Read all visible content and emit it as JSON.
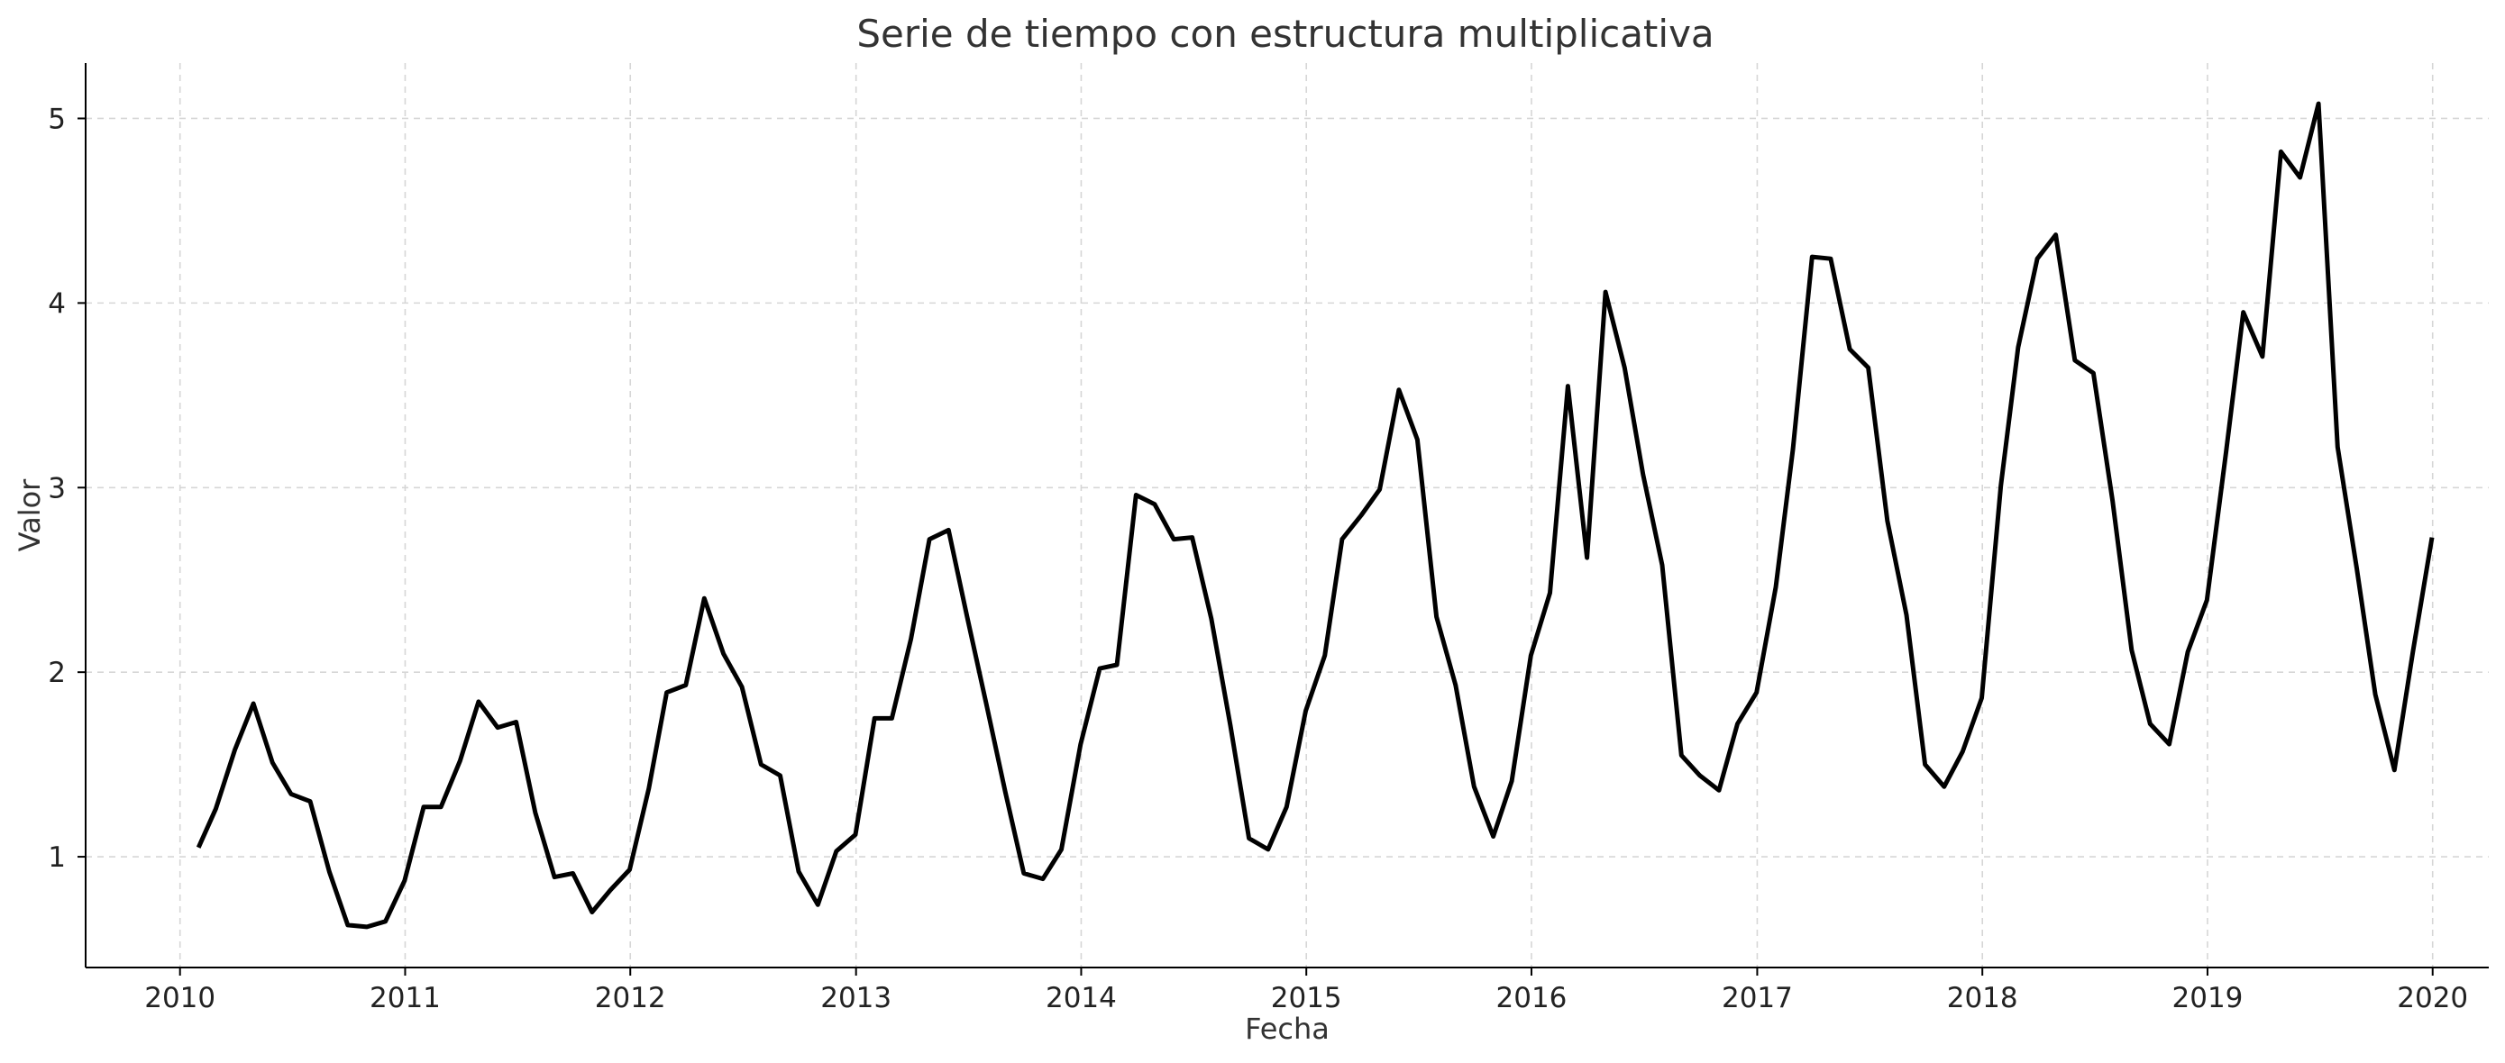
{
  "chart_data": {
    "type": "line",
    "title": "Serie de tiempo con estructura multiplicativa",
    "xlabel": "Fecha",
    "ylabel": "Valor",
    "xlim": [
      "2009-08-01",
      "2020-04-01"
    ],
    "ylim": [
      0.4,
      5.3
    ],
    "grid": true,
    "legend": "none",
    "x_ticks": [
      "2010",
      "2011",
      "2012",
      "2013",
      "2014",
      "2015",
      "2016",
      "2017",
      "2018",
      "2019",
      "2020"
    ],
    "y_ticks": [
      "1",
      "2",
      "3",
      "4",
      "5"
    ],
    "x_tick_values": [
      "2010-01-01",
      "2011-01-01",
      "2012-01-01",
      "2013-01-01",
      "2014-01-01",
      "2015-01-01",
      "2016-01-01",
      "2017-01-01",
      "2018-01-01",
      "2019-01-01",
      "2020-01-01"
    ],
    "y_tick_values": [
      1,
      2,
      3,
      4,
      5
    ],
    "series_color": "#000000",
    "x": [
      "2010-01-31",
      "2010-02-28",
      "2010-03-31",
      "2010-04-30",
      "2010-05-31",
      "2010-06-30",
      "2010-07-31",
      "2010-08-31",
      "2010-09-30",
      "2010-10-31",
      "2010-11-30",
      "2010-12-31",
      "2011-01-31",
      "2011-02-28",
      "2011-03-31",
      "2011-04-30",
      "2011-05-31",
      "2011-06-30",
      "2011-07-31",
      "2011-08-31",
      "2011-09-30",
      "2011-10-31",
      "2011-11-30",
      "2011-12-31",
      "2012-01-31",
      "2012-02-29",
      "2012-03-31",
      "2012-04-30",
      "2012-05-31",
      "2012-06-30",
      "2012-07-31",
      "2012-08-31",
      "2012-09-30",
      "2012-10-31",
      "2012-11-30",
      "2012-12-31",
      "2013-01-31",
      "2013-02-28",
      "2013-03-31",
      "2013-04-30",
      "2013-05-31",
      "2013-06-30",
      "2013-07-31",
      "2013-08-31",
      "2013-09-30",
      "2013-10-31",
      "2013-11-30",
      "2013-12-31",
      "2014-01-31",
      "2014-02-28",
      "2014-03-31",
      "2014-04-30",
      "2014-05-31",
      "2014-06-30",
      "2014-07-31",
      "2014-08-31",
      "2014-09-30",
      "2014-10-31",
      "2014-11-30",
      "2014-12-31",
      "2015-01-31",
      "2015-02-28",
      "2015-03-31",
      "2015-04-30",
      "2015-05-31",
      "2015-06-30",
      "2015-07-31",
      "2015-08-31",
      "2015-09-30",
      "2015-10-31",
      "2015-11-30",
      "2015-12-31",
      "2016-01-31",
      "2016-02-29",
      "2016-03-31",
      "2016-04-30",
      "2016-05-31",
      "2016-06-30",
      "2016-07-31",
      "2016-08-31",
      "2016-09-30",
      "2016-10-31",
      "2016-11-30",
      "2016-12-31",
      "2017-01-31",
      "2017-02-28",
      "2017-03-31",
      "2017-04-30",
      "2017-05-31",
      "2017-06-30",
      "2017-07-31",
      "2017-08-31",
      "2017-09-30",
      "2017-10-31",
      "2017-11-30",
      "2017-12-31",
      "2018-01-31",
      "2018-02-28",
      "2018-03-31",
      "2018-04-30",
      "2018-05-31",
      "2018-06-30",
      "2018-07-31",
      "2018-08-31",
      "2018-09-30",
      "2018-10-31",
      "2018-11-30",
      "2018-12-31",
      "2019-01-31",
      "2019-02-28",
      "2019-03-31",
      "2019-04-30",
      "2019-05-31",
      "2019-06-30",
      "2019-07-31",
      "2019-08-31",
      "2019-09-30",
      "2019-10-31",
      "2019-11-30",
      "2019-12-31"
    ],
    "values": [
      1.05,
      1.26,
      1.58,
      1.83,
      1.51,
      1.34,
      1.3,
      0.92,
      0.63,
      0.62,
      0.65,
      0.87,
      1.27,
      1.27,
      1.52,
      1.84,
      1.7,
      1.73,
      1.24,
      0.89,
      0.91,
      0.7,
      0.82,
      0.93,
      1.37,
      1.89,
      1.93,
      2.4,
      2.1,
      1.92,
      1.5,
      1.44,
      0.92,
      0.74,
      1.03,
      1.12,
      1.75,
      1.75,
      2.18,
      2.72,
      2.77,
      2.3,
      1.83,
      1.35,
      0.91,
      0.88,
      1.04,
      1.61,
      2.02,
      2.04,
      2.96,
      2.91,
      2.72,
      2.73,
      2.29,
      1.71,
      1.1,
      1.04,
      1.27,
      1.79,
      2.09,
      2.72,
      2.85,
      2.99,
      3.53,
      3.26,
      2.3,
      1.93,
      1.38,
      1.11,
      1.41,
      2.09,
      2.43,
      3.55,
      2.62,
      4.06,
      3.65,
      3.07,
      2.58,
      1.55,
      1.44,
      1.36,
      1.72,
      1.89,
      2.46,
      3.21,
      4.25,
      4.24,
      3.75,
      3.65,
      2.82,
      2.31,
      1.5,
      1.38,
      1.57,
      1.86,
      3.01,
      3.76,
      4.24,
      4.37,
      3.69,
      3.62,
      2.93,
      2.12,
      1.72,
      1.61,
      2.11,
      2.39,
      3.19,
      3.95,
      3.71,
      4.82,
      4.68,
      5.08,
      3.22,
      2.56,
      1.88,
      1.47,
      2.11,
      2.73
    ]
  }
}
